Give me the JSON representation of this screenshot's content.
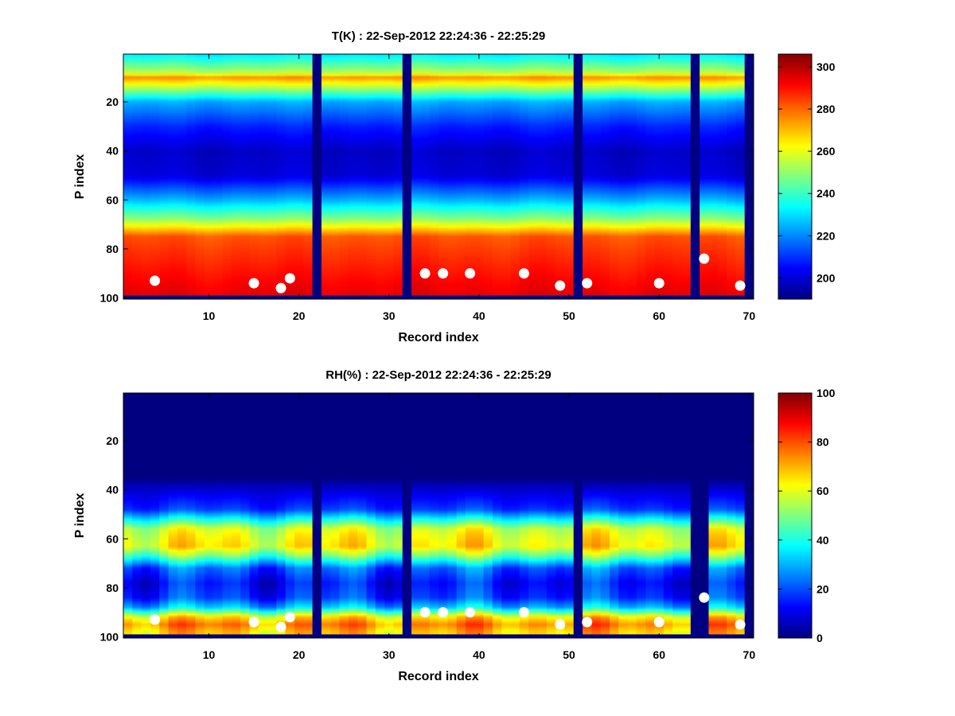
{
  "chart_data": [
    {
      "type": "heatmap",
      "title": "T(K) : 22-Sep-2012 22:24:36 - 22:25:29",
      "xlabel": "Record index",
      "ylabel": "P index",
      "xlim": [
        0.5,
        70.5
      ],
      "ylim": [
        0.5,
        100.5
      ],
      "y_direction": "reverse",
      "xticks": [
        10,
        20,
        30,
        40,
        50,
        60,
        70
      ],
      "yticks": [
        20,
        40,
        60,
        80,
        100
      ],
      "colorbar": {
        "min": 190,
        "max": 306,
        "ticks": [
          200,
          220,
          240,
          260,
          280,
          300
        ]
      },
      "colormap": "jet",
      "profile": {
        "p": [
          1,
          8,
          10,
          20,
          30,
          40,
          50,
          60,
          68,
          75,
          80,
          90,
          98
        ],
        "v": [
          232,
          254,
          275,
          224,
          208,
          198,
          200,
          225,
          250,
          282,
          285,
          290,
          294
        ]
      },
      "gap_records": [
        22,
        32,
        51,
        64,
        70
      ],
      "gap_value": 190,
      "bottom_fill_from_p": 99,
      "markers": [
        {
          "x": 4,
          "y": 93
        },
        {
          "x": 15,
          "y": 94
        },
        {
          "x": 18,
          "y": 96
        },
        {
          "x": 19,
          "y": 92
        },
        {
          "x": 34,
          "y": 90
        },
        {
          "x": 36,
          "y": 90
        },
        {
          "x": 39,
          "y": 90
        },
        {
          "x": 45,
          "y": 90
        },
        {
          "x": 49,
          "y": 95
        },
        {
          "x": 52,
          "y": 94
        },
        {
          "x": 60,
          "y": 94
        },
        {
          "x": 65,
          "y": 84
        },
        {
          "x": 69,
          "y": 95
        }
      ]
    },
    {
      "type": "heatmap",
      "title": "RH(%) : 22-Sep-2012 22:24:36 - 22:25:29",
      "xlabel": "Record index",
      "ylabel": "P index",
      "xlim": [
        0.5,
        70.5
      ],
      "ylim": [
        0.5,
        100.5
      ],
      "y_direction": "reverse",
      "xticks": [
        10,
        20,
        30,
        40,
        50,
        60,
        70
      ],
      "yticks": [
        20,
        40,
        60,
        80,
        100
      ],
      "colorbar": {
        "min": 0,
        "max": 100,
        "ticks": [
          0,
          20,
          40,
          60,
          80,
          100
        ]
      },
      "colormap": "jet",
      "profile": {
        "p": [
          1,
          35,
          40,
          48,
          52,
          56,
          60,
          63,
          67,
          72,
          78,
          84,
          88,
          92,
          95,
          98
        ],
        "v": [
          0,
          0,
          8,
          18,
          38,
          58,
          62,
          64,
          48,
          22,
          14,
          18,
          32,
          65,
          75,
          68
        ]
      },
      "gap_records": [
        22,
        32,
        51,
        64,
        65,
        70
      ],
      "gap_value": 0,
      "bottom_fill_from_p": 99,
      "markers": [
        {
          "x": 4,
          "y": 93
        },
        {
          "x": 15,
          "y": 94
        },
        {
          "x": 18,
          "y": 96
        },
        {
          "x": 19,
          "y": 92
        },
        {
          "x": 34,
          "y": 90
        },
        {
          "x": 36,
          "y": 90
        },
        {
          "x": 39,
          "y": 90
        },
        {
          "x": 45,
          "y": 90
        },
        {
          "x": 49,
          "y": 95
        },
        {
          "x": 52,
          "y": 94
        },
        {
          "x": 60,
          "y": 94
        },
        {
          "x": 65,
          "y": 84
        },
        {
          "x": 69,
          "y": 95
        }
      ]
    }
  ]
}
